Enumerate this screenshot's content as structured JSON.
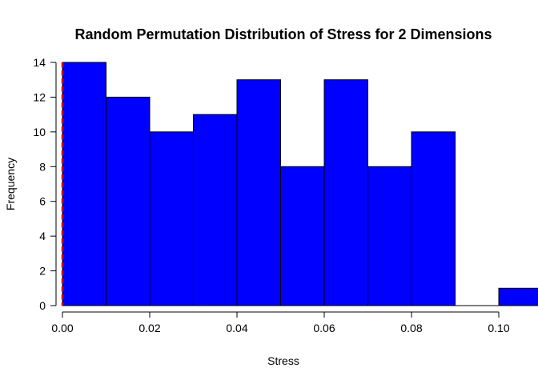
{
  "chart_data": {
    "type": "bar",
    "title": "Random Permutation Distribution of Stress for 2 Dimensions",
    "xlabel": "Stress",
    "ylabel": "Frequency",
    "bins": [
      {
        "start": 0.0,
        "end": 0.01,
        "count": 14
      },
      {
        "start": 0.01,
        "end": 0.02,
        "count": 12
      },
      {
        "start": 0.02,
        "end": 0.03,
        "count": 10
      },
      {
        "start": 0.03,
        "end": 0.04,
        "count": 11
      },
      {
        "start": 0.04,
        "end": 0.05,
        "count": 13
      },
      {
        "start": 0.05,
        "end": 0.06,
        "count": 8
      },
      {
        "start": 0.06,
        "end": 0.07,
        "count": 13
      },
      {
        "start": 0.07,
        "end": 0.08,
        "count": 8
      },
      {
        "start": 0.08,
        "end": 0.09,
        "count": 10
      },
      {
        "start": 0.09,
        "end": 0.1,
        "count": 0
      },
      {
        "start": 0.1,
        "end": 0.11,
        "count": 1
      }
    ],
    "xlim": [
      0.0,
      0.1
    ],
    "ylim": [
      0,
      14
    ],
    "x_ticks": [
      "0.00",
      "0.02",
      "0.04",
      "0.06",
      "0.08",
      "0.10"
    ],
    "x_tick_values": [
      0.0,
      0.02,
      0.04,
      0.06,
      0.08,
      0.1
    ],
    "y_ticks": [
      "0",
      "2",
      "4",
      "6",
      "8",
      "10",
      "12",
      "14"
    ],
    "y_tick_values": [
      0,
      2,
      4,
      6,
      8,
      10,
      12,
      14
    ],
    "observed_stress": 0.0,
    "bar_color": "#0000ff",
    "bar_edge_color": "#000000",
    "observed_line_color": "#cc0000",
    "grid": false
  }
}
